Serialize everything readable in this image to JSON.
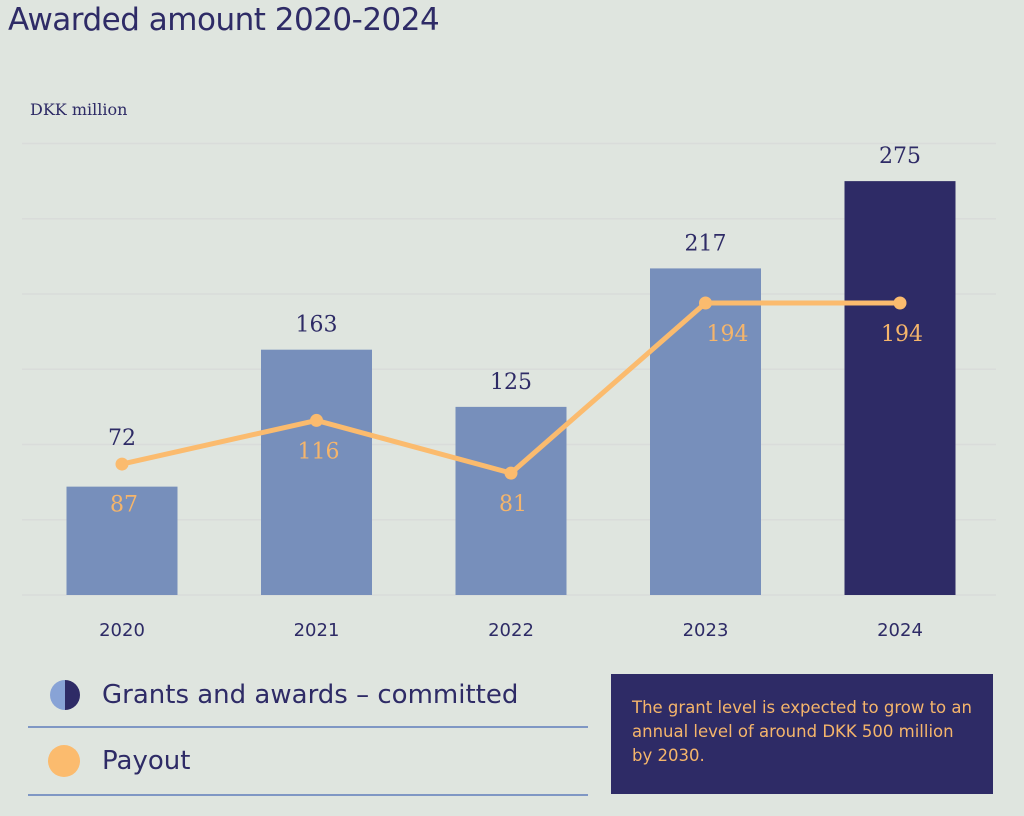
{
  "header": {
    "title": "Awarded amount 2020-2024",
    "unit": "DKK million"
  },
  "legend": [
    {
      "label": "Grants and awards – committed",
      "icon": "half-circle-swatch"
    },
    {
      "label": "Payout",
      "icon": "circle-swatch"
    }
  ],
  "note": "The grant level is expected to grow to an annual level of around DKK 500 million by 2030.",
  "colors": {
    "bar": "#778fbb",
    "bar_highlight": "#2e2b66",
    "line": "#fbbb6e",
    "bar_label": "#2e2b66",
    "line_label": "#f5b56b",
    "grid": "#d9dcda"
  },
  "chart_data": {
    "type": "bar",
    "title": "Awarded amount 2020-2024",
    "xlabel": "",
    "ylabel": "DKK million",
    "ylim": [
      0,
      300
    ],
    "ygrid_step": 50,
    "grid": true,
    "y_tick_labels_shown": false,
    "categories": [
      "2020",
      "2021",
      "2022",
      "2023",
      "2024"
    ],
    "series": [
      {
        "name": "Grants and awards – committed",
        "type": "bar",
        "values": [
          72,
          163,
          125,
          217,
          275
        ],
        "highlight_index": 4
      },
      {
        "name": "Payout",
        "type": "line",
        "values": [
          87,
          116,
          81,
          194,
          194
        ]
      }
    ],
    "legend_position": "bottom-left"
  }
}
